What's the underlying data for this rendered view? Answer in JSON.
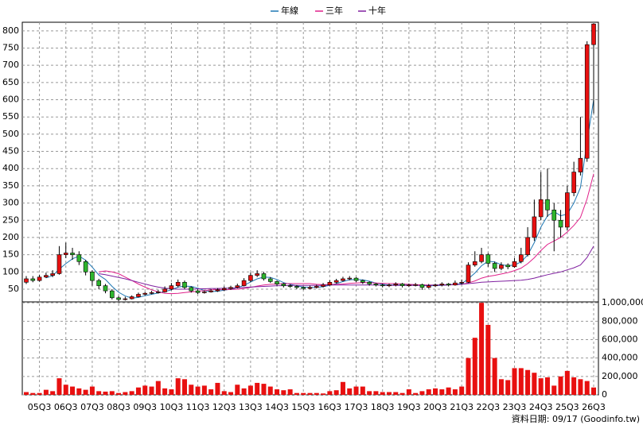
{
  "chart_data": {
    "type": "candlestick",
    "categories": [
      null,
      null,
      "05Q3",
      null,
      null,
      null,
      "06Q3",
      null,
      null,
      null,
      "07Q3",
      null,
      null,
      null,
      "08Q3",
      null,
      null,
      null,
      "09Q3",
      null,
      null,
      null,
      "10Q3",
      null,
      null,
      null,
      "11Q3",
      null,
      null,
      null,
      "12Q3",
      null,
      null,
      null,
      "13Q3",
      null,
      null,
      null,
      "14Q3",
      null,
      null,
      null,
      "15Q3",
      null,
      null,
      null,
      "16Q3",
      null,
      null,
      null,
      "17Q3",
      null,
      null,
      null,
      "18Q3",
      null,
      null,
      null,
      "19Q3",
      null,
      null,
      null,
      "20Q3",
      null,
      null,
      null,
      "21Q3",
      null,
      null,
      null,
      "22Q3",
      null,
      null,
      null,
      "23Q3",
      null,
      null,
      null,
      "24Q3",
      null,
      null,
      null,
      "25Q3",
      null,
      null,
      null,
      "26Q3"
    ],
    "open": [
      70,
      80,
      75,
      85,
      90,
      95,
      150,
      155,
      150,
      130,
      100,
      75,
      60,
      45,
      25,
      20,
      22,
      28,
      35,
      38,
      40,
      42,
      50,
      60,
      70,
      55,
      45,
      40,
      42,
      45,
      48,
      52,
      55,
      60,
      75,
      90,
      95,
      80,
      72,
      65,
      60,
      58,
      55,
      52,
      55,
      58,
      62,
      70,
      75,
      80,
      82,
      75,
      70,
      65,
      62,
      60,
      62,
      65,
      60,
      62,
      63,
      55,
      60,
      62,
      65,
      62,
      68,
      70,
      120,
      130,
      150,
      125,
      110,
      120,
      115,
      130,
      150,
      200,
      260,
      310,
      280,
      250,
      230,
      330,
      390,
      430,
      760
    ],
    "high": [
      88,
      88,
      92,
      98,
      105,
      175,
      185,
      170,
      160,
      135,
      105,
      80,
      65,
      50,
      30,
      28,
      32,
      40,
      42,
      45,
      48,
      58,
      68,
      78,
      75,
      58,
      50,
      46,
      50,
      53,
      58,
      60,
      66,
      82,
      98,
      105,
      100,
      85,
      75,
      68,
      64,
      62,
      58,
      60,
      63,
      68,
      76,
      80,
      86,
      88,
      85,
      78,
      73,
      68,
      66,
      66,
      70,
      68,
      66,
      68,
      66,
      65,
      66,
      70,
      68,
      75,
      78,
      128,
      160,
      170,
      155,
      130,
      128,
      125,
      140,
      170,
      230,
      310,
      390,
      400,
      300,
      280,
      350,
      420,
      550,
      770,
      822
    ],
    "low": [
      65,
      70,
      72,
      82,
      85,
      92,
      140,
      135,
      120,
      90,
      60,
      50,
      38,
      20,
      15,
      17,
      20,
      26,
      32,
      35,
      37,
      40,
      47,
      55,
      50,
      40,
      36,
      37,
      40,
      42,
      45,
      48,
      52,
      58,
      70,
      85,
      75,
      68,
      60,
      55,
      54,
      50,
      48,
      50,
      52,
      55,
      60,
      66,
      72,
      76,
      70,
      65,
      60,
      58,
      55,
      56,
      58,
      55,
      56,
      58,
      48,
      52,
      56,
      58,
      58,
      60,
      64,
      68,
      115,
      125,
      115,
      100,
      105,
      108,
      112,
      125,
      145,
      190,
      250,
      260,
      160,
      200,
      220,
      320,
      380,
      420,
      560
    ],
    "close": [
      80,
      75,
      85,
      90,
      95,
      150,
      155,
      150,
      130,
      100,
      75,
      60,
      45,
      25,
      20,
      22,
      28,
      35,
      38,
      40,
      42,
      50,
      60,
      70,
      55,
      45,
      40,
      42,
      45,
      48,
      52,
      55,
      60,
      75,
      90,
      95,
      80,
      72,
      65,
      60,
      58,
      55,
      52,
      55,
      58,
      62,
      70,
      75,
      80,
      82,
      75,
      70,
      65,
      62,
      60,
      62,
      65,
      60,
      62,
      63,
      55,
      60,
      62,
      65,
      62,
      68,
      70,
      120,
      130,
      150,
      125,
      110,
      120,
      115,
      130,
      150,
      200,
      260,
      310,
      280,
      250,
      230,
      330,
      390,
      430,
      760,
      820
    ],
    "up_color": "#e81010",
    "down_color": "#2db52d",
    "series": [
      {
        "name": "年線",
        "color": "#1f78b4",
        "values": [
          null,
          null,
          null,
          83,
          89,
          108,
          124,
          138,
          146,
          134,
          114,
          91,
          78,
          58,
          41,
          30,
          24,
          26,
          31,
          35,
          39,
          43,
          48,
          56,
          59,
          58,
          53,
          46,
          43,
          44,
          47,
          50,
          54,
          61,
          71,
          80,
          85,
          84,
          78,
          69,
          64,
          60,
          56,
          55,
          55,
          57,
          61,
          66,
          72,
          77,
          78,
          77,
          73,
          68,
          64,
          62,
          62,
          62,
          62,
          63,
          60,
          60,
          60,
          61,
          62,
          64,
          66,
          80,
          97,
          118,
          131,
          129,
          121,
          118,
          120,
          129,
          149,
          185,
          230,
          263,
          275,
          263,
          268,
          300,
          345,
          478,
          600
        ]
      },
      {
        "name": "三年",
        "color": "#e0208a",
        "values": [
          null,
          null,
          null,
          null,
          null,
          null,
          null,
          null,
          null,
          null,
          null,
          100,
          103,
          100,
          95,
          85,
          75,
          65,
          56,
          48,
          42,
          38,
          37,
          38,
          40,
          42,
          44,
          46,
          48,
          49,
          48,
          49,
          50,
          52,
          55,
          59,
          62,
          64,
          65,
          66,
          66,
          66,
          66,
          66,
          64,
          63,
          63,
          64,
          65,
          67,
          68,
          69,
          69,
          68,
          67,
          66,
          66,
          65,
          64,
          63,
          62,
          62,
          62,
          62,
          62,
          63,
          64,
          68,
          74,
          82,
          87,
          90,
          94,
          98,
          104,
          111,
          124,
          141,
          162,
          180,
          190,
          200,
          216,
          235,
          258,
          312,
          385
        ]
      },
      {
        "name": "十年",
        "color": "#8020a0",
        "values": [
          null,
          null,
          null,
          null,
          null,
          null,
          null,
          null,
          null,
          null,
          null,
          95,
          92,
          88,
          84,
          80,
          75,
          70,
          65,
          60,
          56,
          53,
          51,
          50,
          50,
          50,
          51,
          51,
          52,
          52,
          53,
          53,
          54,
          55,
          56,
          57,
          58,
          59,
          60,
          60,
          61,
          61,
          61,
          61,
          61,
          61,
          62,
          62,
          62,
          62,
          62,
          62,
          62,
          62,
          61,
          61,
          61,
          61,
          61,
          61,
          61,
          61,
          62,
          62,
          63,
          63,
          64,
          66,
          68,
          70,
          71,
          72,
          73,
          74,
          75,
          76,
          78,
          82,
          87,
          92,
          96,
          100,
          106,
          112,
          120,
          142,
          175
        ]
      }
    ],
    "ylim": [
      13,
      825
    ],
    "yticks": [
      50,
      100,
      150,
      200,
      250,
      300,
      350,
      400,
      450,
      500,
      550,
      600,
      650,
      700,
      750,
      800
    ],
    "grid": true,
    "volume": {
      "color": "#e81010",
      "values": [
        30000,
        20000,
        20000,
        55000,
        40000,
        180000,
        110000,
        90000,
        70000,
        55000,
        90000,
        40000,
        35000,
        40000,
        20000,
        30000,
        40000,
        80000,
        100000,
        90000,
        150000,
        70000,
        60000,
        180000,
        170000,
        110000,
        90000,
        100000,
        60000,
        130000,
        40000,
        30000,
        110000,
        70000,
        100000,
        130000,
        120000,
        90000,
        60000,
        50000,
        60000,
        20000,
        20000,
        20000,
        20000,
        15000,
        40000,
        50000,
        140000,
        70000,
        90000,
        90000,
        40000,
        40000,
        30000,
        30000,
        30000,
        20000,
        60000,
        20000,
        40000,
        60000,
        70000,
        60000,
        80000,
        60000,
        90000,
        400000,
        620000,
        1000000,
        760000,
        400000,
        170000,
        160000,
        290000,
        290000,
        270000,
        240000,
        180000,
        190000,
        100000,
        200000,
        260000,
        190000,
        170000,
        150000,
        80000
      ],
      "ylim": [
        0,
        1010000
      ],
      "yticks": [
        0,
        {
          "value": 200000,
          "label": "200,000"
        },
        {
          "value": 400000,
          "label": "400,000"
        },
        {
          "value": 600000,
          "label": "600,000"
        },
        {
          "value": 800000,
          "label": "800,000"
        },
        {
          "value": 1000000,
          "label": "1,000,000"
        }
      ]
    },
    "note": "資料日期: 09/17 (Goodinfo.tw)"
  }
}
